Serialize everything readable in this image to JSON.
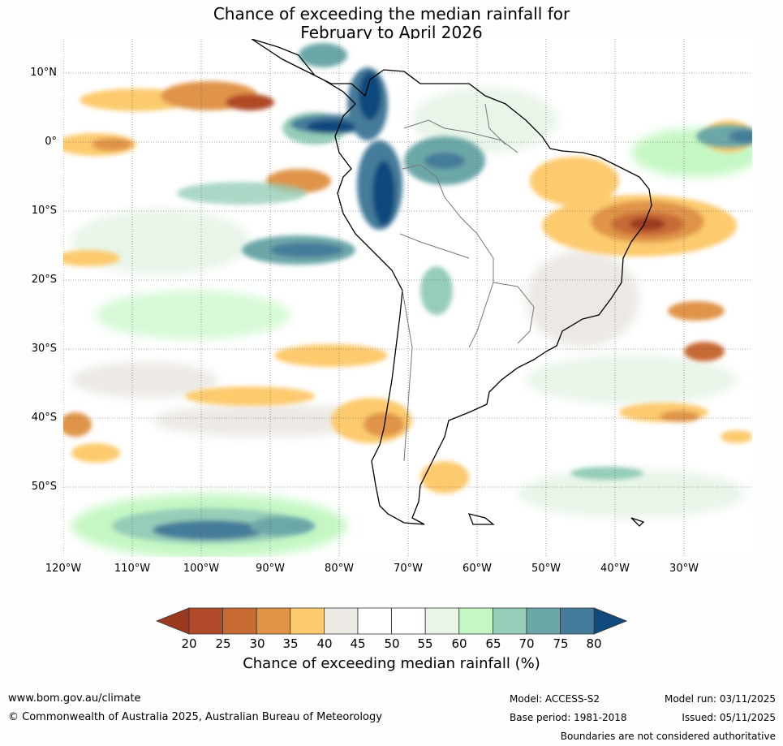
{
  "title_line1": "Chance of exceeding the median rainfall for",
  "title_line2": "February to April 2026",
  "lat_labels": [
    "10°N",
    "0°",
    "10°S",
    "20°S",
    "30°S",
    "40°S",
    "50°S"
  ],
  "lon_labels": [
    "120°W",
    "110°W",
    "100°W",
    "90°W",
    "80°W",
    "70°W",
    "60°W",
    "50°W",
    "40°W",
    "30°W"
  ],
  "colorbar": {
    "ticks": [
      "20",
      "25",
      "30",
      "35",
      "40",
      "45",
      "50",
      "55",
      "60",
      "65",
      "70",
      "75",
      "80"
    ],
    "colors": [
      "#9c3a20",
      "#b04a28",
      "#c86a34",
      "#e09448",
      "#fdca6e",
      "#ece9e4",
      "#ffffff",
      "#ffffff",
      "#e8f5e8",
      "#c4f7c4",
      "#96cdb8",
      "#6ca7a8",
      "#447b9a",
      "#0f4a7c"
    ],
    "label": "Chance of exceeding median rainfall (%)"
  },
  "footer": {
    "website": "www.bom.gov.au/climate",
    "copyright": "© Commonwealth of Australia 2025, Australian Bureau of Meteorology",
    "model": "Model: ACCESS-S2",
    "base_period": "Base period: 1981-2018",
    "model_run": "Model run: 03/11/2025",
    "issued": "Issued: 05/11/2025",
    "disclaimer": "Boundaries are not considered authoritative"
  }
}
